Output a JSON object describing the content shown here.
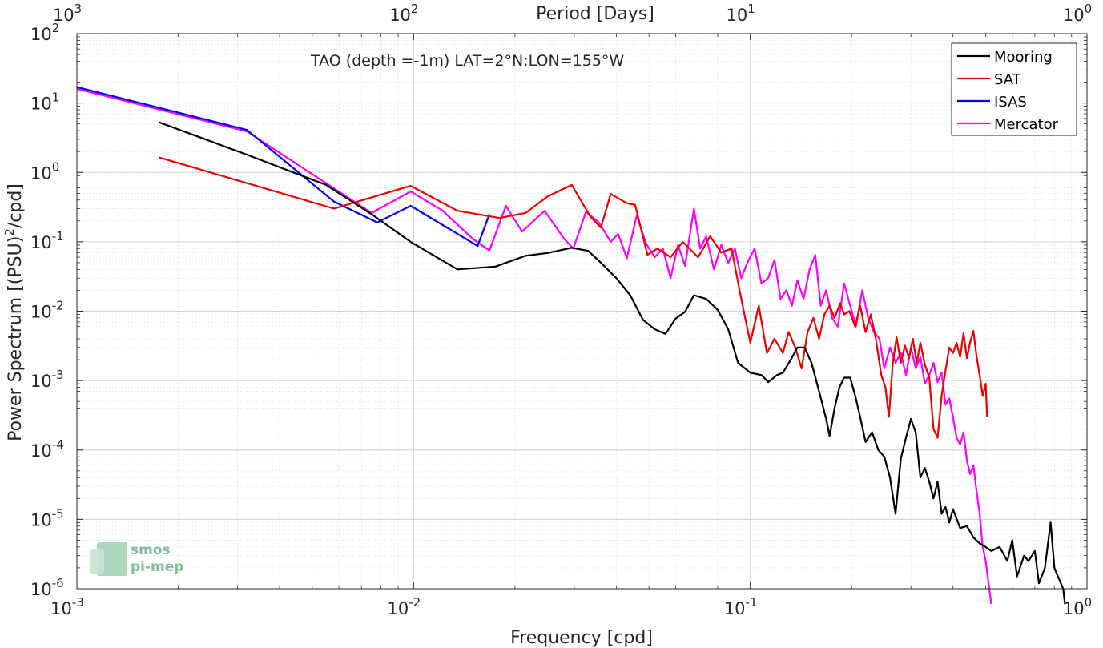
{
  "chart_data": {
    "type": "line",
    "scale": "log-log",
    "grid": true,
    "minor_grid": true,
    "legend_position": "top-right",
    "xlabel": "Frequency [cpd]",
    "ylabel": "Power Spectrum [(PSU)",
    "ylabel_sup": "2",
    "ylabel_tail": "/cpd]",
    "x2label": "Period [Days]",
    "annotation": "TAO (depth =-1m) LAT=2°N;LON=155°W",
    "xlim": [
      0.001,
      1
    ],
    "ylim": [
      1e-06,
      100
    ],
    "x_ticks": [
      {
        "base": "10",
        "exp": "-3"
      },
      {
        "base": "10",
        "exp": "-2"
      },
      {
        "base": "10",
        "exp": "-1"
      },
      {
        "base": "10",
        "exp": "0"
      }
    ],
    "x2_ticks": [
      {
        "base": "10",
        "exp": "3"
      },
      {
        "base": "10",
        "exp": "2"
      },
      {
        "base": "10",
        "exp": "1"
      },
      {
        "base": "10",
        "exp": "0"
      }
    ],
    "y_ticks": [
      {
        "base": "10",
        "exp": "-6"
      },
      {
        "base": "10",
        "exp": "-5"
      },
      {
        "base": "10",
        "exp": "-4"
      },
      {
        "base": "10",
        "exp": "-3"
      },
      {
        "base": "10",
        "exp": "-2"
      },
      {
        "base": "10",
        "exp": "-1"
      },
      {
        "base": "10",
        "exp": "0"
      },
      {
        "base": "10",
        "exp": "1"
      },
      {
        "base": "10",
        "exp": "2"
      }
    ],
    "series": [
      {
        "name": "Mooring",
        "color": "#000000",
        "points": [
          [
            0.00175,
            5.3
          ],
          [
            0.0032,
            1.8
          ],
          [
            0.0055,
            0.66
          ],
          [
            0.0075,
            0.25
          ],
          [
            0.0098,
            0.1
          ],
          [
            0.0135,
            0.04
          ],
          [
            0.0175,
            0.044
          ],
          [
            0.0215,
            0.063
          ],
          [
            0.025,
            0.069
          ],
          [
            0.0295,
            0.082
          ],
          [
            0.033,
            0.074
          ],
          [
            0.036,
            0.05
          ],
          [
            0.04,
            0.03
          ],
          [
            0.044,
            0.017
          ],
          [
            0.048,
            0.0075
          ],
          [
            0.052,
            0.0055
          ],
          [
            0.056,
            0.0047
          ],
          [
            0.06,
            0.0078
          ],
          [
            0.064,
            0.0098
          ],
          [
            0.068,
            0.017
          ],
          [
            0.074,
            0.015
          ],
          [
            0.08,
            0.0105
          ],
          [
            0.086,
            0.0055
          ],
          [
            0.092,
            0.0018
          ],
          [
            0.1,
            0.0013
          ],
          [
            0.108,
            0.0012
          ],
          [
            0.113,
            0.00095
          ],
          [
            0.12,
            0.0012
          ],
          [
            0.125,
            0.0013
          ],
          [
            0.132,
            0.002
          ],
          [
            0.138,
            0.003
          ],
          [
            0.145,
            0.003
          ],
          [
            0.152,
            0.0018
          ],
          [
            0.16,
            0.0007
          ],
          [
            0.168,
            0.00028
          ],
          [
            0.172,
            0.00016
          ],
          [
            0.178,
            0.0004
          ],
          [
            0.184,
            0.0008
          ],
          [
            0.19,
            0.0011
          ],
          [
            0.198,
            0.0011
          ],
          [
            0.205,
            0.0006
          ],
          [
            0.212,
            0.0003
          ],
          [
            0.22,
            0.00013
          ],
          [
            0.23,
            0.00018
          ],
          [
            0.24,
            0.0001
          ],
          [
            0.25,
            8e-05
          ],
          [
            0.26,
            4e-05
          ],
          [
            0.27,
            1.2e-05
          ],
          [
            0.28,
            7.5e-05
          ],
          [
            0.29,
            0.00015
          ],
          [
            0.3,
            0.00028
          ],
          [
            0.31,
            0.00018
          ],
          [
            0.32,
            4e-05
          ],
          [
            0.33,
            5.5e-05
          ],
          [
            0.34,
            3.5e-05
          ],
          [
            0.35,
            2e-05
          ],
          [
            0.36,
            3.5e-05
          ],
          [
            0.37,
            1.2e-05
          ],
          [
            0.38,
            1.5e-05
          ],
          [
            0.39,
            9e-06
          ],
          [
            0.4,
            1.4e-05
          ],
          [
            0.42,
            7.5e-06
          ],
          [
            0.44,
            8e-06
          ],
          [
            0.46,
            5.5e-06
          ],
          [
            0.48,
            4.5e-06
          ],
          [
            0.5,
            4e-06
          ],
          [
            0.52,
            3.5e-06
          ],
          [
            0.55,
            4e-06
          ],
          [
            0.58,
            2.5e-06
          ],
          [
            0.6,
            5e-06
          ],
          [
            0.62,
            1.5e-06
          ],
          [
            0.65,
            3e-06
          ],
          [
            0.67,
            2.5e-06
          ],
          [
            0.7,
            3.5e-06
          ],
          [
            0.72,
            1.2e-06
          ],
          [
            0.75,
            2e-06
          ],
          [
            0.78,
            9e-06
          ],
          [
            0.8,
            2e-06
          ],
          [
            0.82,
            1.5e-06
          ],
          [
            0.85,
            1e-06
          ],
          [
            0.86,
            6e-07
          ]
        ]
      },
      {
        "name": "SAT",
        "color": "#ee0000",
        "points": [
          [
            0.00175,
            1.65
          ],
          [
            0.0058,
            0.3
          ],
          [
            0.0098,
            0.64
          ],
          [
            0.0135,
            0.28
          ],
          [
            0.018,
            0.22
          ],
          [
            0.0215,
            0.26
          ],
          [
            0.025,
            0.45
          ],
          [
            0.0295,
            0.66
          ],
          [
            0.0335,
            0.23
          ],
          [
            0.036,
            0.16
          ],
          [
            0.0385,
            0.49
          ],
          [
            0.043,
            0.36
          ],
          [
            0.0455,
            0.34
          ],
          [
            0.0495,
            0.065
          ],
          [
            0.053,
            0.08
          ],
          [
            0.058,
            0.06
          ],
          [
            0.063,
            0.1
          ],
          [
            0.07,
            0.06
          ],
          [
            0.076,
            0.12
          ],
          [
            0.082,
            0.07
          ],
          [
            0.088,
            0.08
          ],
          [
            0.094,
            0.015
          ],
          [
            0.1,
            0.0035
          ],
          [
            0.106,
            0.012
          ],
          [
            0.112,
            0.0025
          ],
          [
            0.118,
            0.004
          ],
          [
            0.125,
            0.0025
          ],
          [
            0.13,
            0.005
          ],
          [
            0.136,
            0.003
          ],
          [
            0.142,
            0.0015
          ],
          [
            0.148,
            0.005
          ],
          [
            0.154,
            0.008
          ],
          [
            0.16,
            0.004
          ],
          [
            0.166,
            0.009
          ],
          [
            0.172,
            0.012
          ],
          [
            0.178,
            0.008
          ],
          [
            0.185,
            0.013
          ],
          [
            0.19,
            0.009
          ],
          [
            0.197,
            0.01
          ],
          [
            0.205,
            0.006
          ],
          [
            0.212,
            0.012
          ],
          [
            0.22,
            0.005
          ],
          [
            0.228,
            0.009
          ],
          [
            0.236,
            0.004
          ],
          [
            0.245,
            0.0012
          ],
          [
            0.252,
            0.0008
          ],
          [
            0.258,
            0.0003
          ],
          [
            0.265,
            0.0018
          ],
          [
            0.272,
            0.0042
          ],
          [
            0.28,
            0.0018
          ],
          [
            0.288,
            0.0032
          ],
          [
            0.296,
            0.0021
          ],
          [
            0.304,
            0.004
          ],
          [
            0.312,
            0.0018
          ],
          [
            0.32,
            0.0035
          ],
          [
            0.33,
            0.0017
          ],
          [
            0.34,
            0.0011
          ],
          [
            0.35,
            0.0002
          ],
          [
            0.36,
            0.00015
          ],
          [
            0.37,
            0.0006
          ],
          [
            0.38,
            0.0014
          ],
          [
            0.39,
            0.003
          ],
          [
            0.4,
            0.0025
          ],
          [
            0.41,
            0.0035
          ],
          [
            0.42,
            0.0022
          ],
          [
            0.43,
            0.0048
          ],
          [
            0.44,
            0.0021
          ],
          [
            0.45,
            0.0036
          ],
          [
            0.46,
            0.0052
          ],
          [
            0.47,
            0.0022
          ],
          [
            0.48,
            0.0012
          ],
          [
            0.49,
            0.0006
          ],
          [
            0.5,
            0.0009
          ],
          [
            0.505,
            0.0003
          ]
        ]
      },
      {
        "name": "ISAS",
        "color": "#0000ee",
        "points": [
          [
            0.001,
            17
          ],
          [
            0.0032,
            4.1
          ],
          [
            0.0058,
            0.38
          ],
          [
            0.0078,
            0.19
          ],
          [
            0.0098,
            0.33
          ],
          [
            0.0155,
            0.087
          ],
          [
            0.0168,
            0.25
          ]
        ]
      },
      {
        "name": "Mercator",
        "color": "#ff00ff",
        "points": [
          [
            0.001,
            16
          ],
          [
            0.0032,
            3.9
          ],
          [
            0.0075,
            0.26
          ],
          [
            0.0098,
            0.53
          ],
          [
            0.0122,
            0.28
          ],
          [
            0.015,
            0.11
          ],
          [
            0.0168,
            0.075
          ],
          [
            0.0188,
            0.33
          ],
          [
            0.021,
            0.14
          ],
          [
            0.0245,
            0.28
          ],
          [
            0.028,
            0.11
          ],
          [
            0.0298,
            0.08
          ],
          [
            0.0325,
            0.27
          ],
          [
            0.0355,
            0.19
          ],
          [
            0.0385,
            0.1
          ],
          [
            0.0405,
            0.13
          ],
          [
            0.043,
            0.058
          ],
          [
            0.046,
            0.24
          ],
          [
            0.049,
            0.095
          ],
          [
            0.052,
            0.06
          ],
          [
            0.055,
            0.08
          ],
          [
            0.058,
            0.03
          ],
          [
            0.061,
            0.09
          ],
          [
            0.064,
            0.045
          ],
          [
            0.068,
            0.3
          ],
          [
            0.071,
            0.08
          ],
          [
            0.074,
            0.12
          ],
          [
            0.078,
            0.04
          ],
          [
            0.082,
            0.09
          ],
          [
            0.086,
            0.05
          ],
          [
            0.09,
            0.08
          ],
          [
            0.094,
            0.03
          ],
          [
            0.098,
            0.05
          ],
          [
            0.103,
            0.08
          ],
          [
            0.108,
            0.025
          ],
          [
            0.113,
            0.03
          ],
          [
            0.118,
            0.055
          ],
          [
            0.123,
            0.015
          ],
          [
            0.128,
            0.02
          ],
          [
            0.133,
            0.012
          ],
          [
            0.138,
            0.028
          ],
          [
            0.144,
            0.015
          ],
          [
            0.15,
            0.04
          ],
          [
            0.156,
            0.065
          ],
          [
            0.162,
            0.012
          ],
          [
            0.168,
            0.02
          ],
          [
            0.175,
            0.008
          ],
          [
            0.182,
            0.006
          ],
          [
            0.19,
            0.025
          ],
          [
            0.198,
            0.012
          ],
          [
            0.206,
            0.006
          ],
          [
            0.215,
            0.02
          ],
          [
            0.224,
            0.008
          ],
          [
            0.233,
            0.005
          ],
          [
            0.242,
            0.004
          ],
          [
            0.25,
            0.0015
          ],
          [
            0.26,
            0.003
          ],
          [
            0.27,
            0.0018
          ],
          [
            0.28,
            0.0025
          ],
          [
            0.29,
            0.0012
          ],
          [
            0.3,
            0.003
          ],
          [
            0.31,
            0.0015
          ],
          [
            0.32,
            0.0022
          ],
          [
            0.33,
            0.0009
          ],
          [
            0.34,
            0.0012
          ],
          [
            0.35,
            0.0018
          ],
          [
            0.36,
            0.00095
          ],
          [
            0.37,
            0.0013
          ],
          [
            0.38,
            0.00045
          ],
          [
            0.39,
            0.00055
          ],
          [
            0.4,
            0.0003
          ],
          [
            0.41,
            0.00015
          ],
          [
            0.42,
            0.00012
          ],
          [
            0.43,
            0.00018
          ],
          [
            0.44,
            7e-05
          ],
          [
            0.45,
            4.5e-05
          ],
          [
            0.46,
            6e-05
          ],
          [
            0.47,
            2.5e-05
          ],
          [
            0.48,
            1.2e-05
          ],
          [
            0.49,
            4e-06
          ],
          [
            0.5,
            2.5e-06
          ],
          [
            0.51,
            1.2e-06
          ],
          [
            0.52,
            6e-07
          ]
        ]
      }
    ]
  },
  "logo": {
    "line1": "smos",
    "line2": "pi-mep",
    "color": "#7fbf98"
  }
}
